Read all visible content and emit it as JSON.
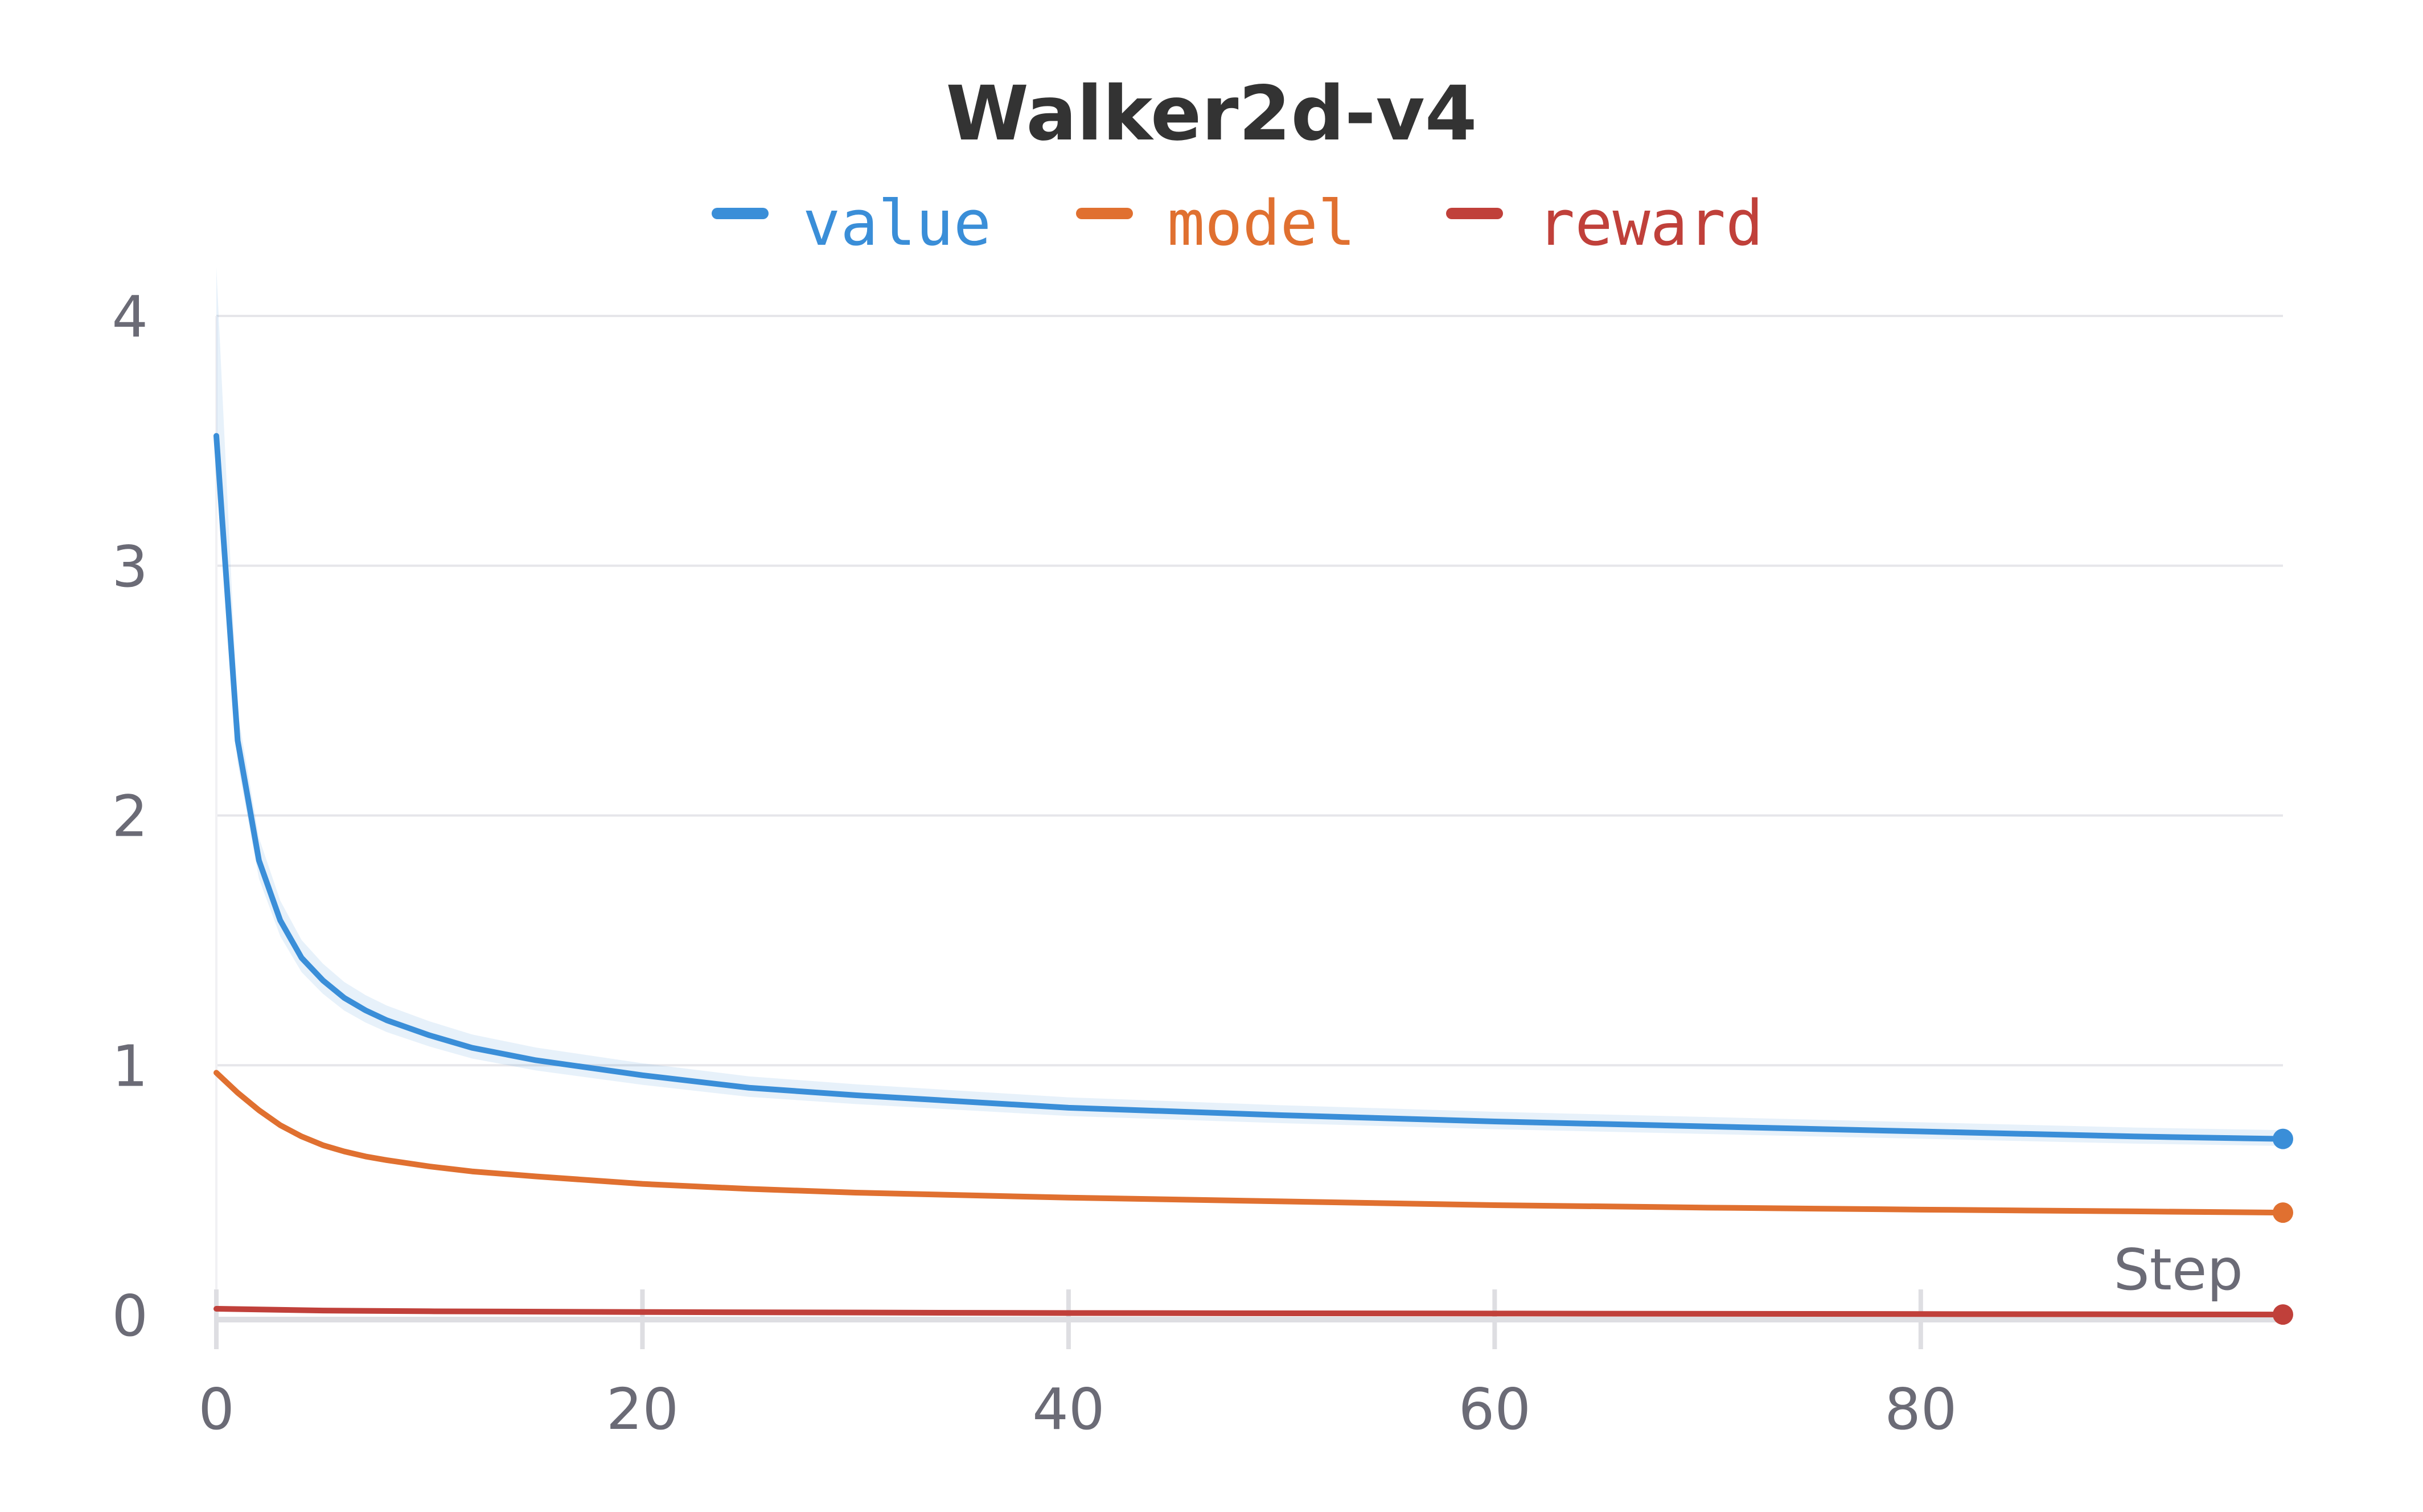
{
  "chart_data": {
    "type": "line",
    "title": "Walker2d-v4",
    "xlabel": "Step",
    "ylabel": "",
    "xlim": [
      0,
      97
    ],
    "ylim": [
      0,
      4
    ],
    "x_ticks": [
      0,
      20,
      40,
      60,
      80
    ],
    "x_tick_labels": [
      "0",
      "20",
      "40",
      "60",
      "80"
    ],
    "y_ticks": [
      0,
      1,
      2,
      3,
      4
    ],
    "y_tick_labels": [
      "0",
      "1",
      "2",
      "3",
      "4"
    ],
    "grid": true,
    "legend_position": "top-center",
    "series": [
      {
        "name": "value",
        "color": "#3a8ed8",
        "band": true,
        "x": [
          0,
          1,
          2,
          3,
          4,
          5,
          6,
          7,
          8,
          10,
          12,
          15,
          20,
          25,
          30,
          40,
          50,
          60,
          70,
          80,
          90,
          97
        ],
        "y": [
          3.52,
          2.3,
          1.82,
          1.58,
          1.43,
          1.34,
          1.27,
          1.22,
          1.18,
          1.12,
          1.07,
          1.02,
          0.96,
          0.91,
          0.88,
          0.83,
          0.8,
          0.775,
          0.755,
          0.735,
          0.715,
          0.705
        ]
      },
      {
        "name": "model",
        "color": "#e07030",
        "band": false,
        "x": [
          0,
          1,
          2,
          3,
          4,
          5,
          6,
          7,
          8,
          10,
          12,
          15,
          20,
          25,
          30,
          40,
          50,
          60,
          70,
          80,
          90,
          97
        ],
        "y": [
          0.97,
          0.89,
          0.82,
          0.76,
          0.715,
          0.68,
          0.655,
          0.635,
          0.62,
          0.595,
          0.575,
          0.555,
          0.525,
          0.505,
          0.49,
          0.47,
          0.455,
          0.44,
          0.43,
          0.422,
          0.415,
          0.41
        ]
      },
      {
        "name": "reward",
        "color": "#c0403a",
        "band": false,
        "x": [
          0,
          5,
          10,
          20,
          40,
          60,
          80,
          97
        ],
        "y": [
          0.025,
          0.018,
          0.015,
          0.012,
          0.008,
          0.006,
          0.004,
          0.002
        ]
      }
    ]
  }
}
